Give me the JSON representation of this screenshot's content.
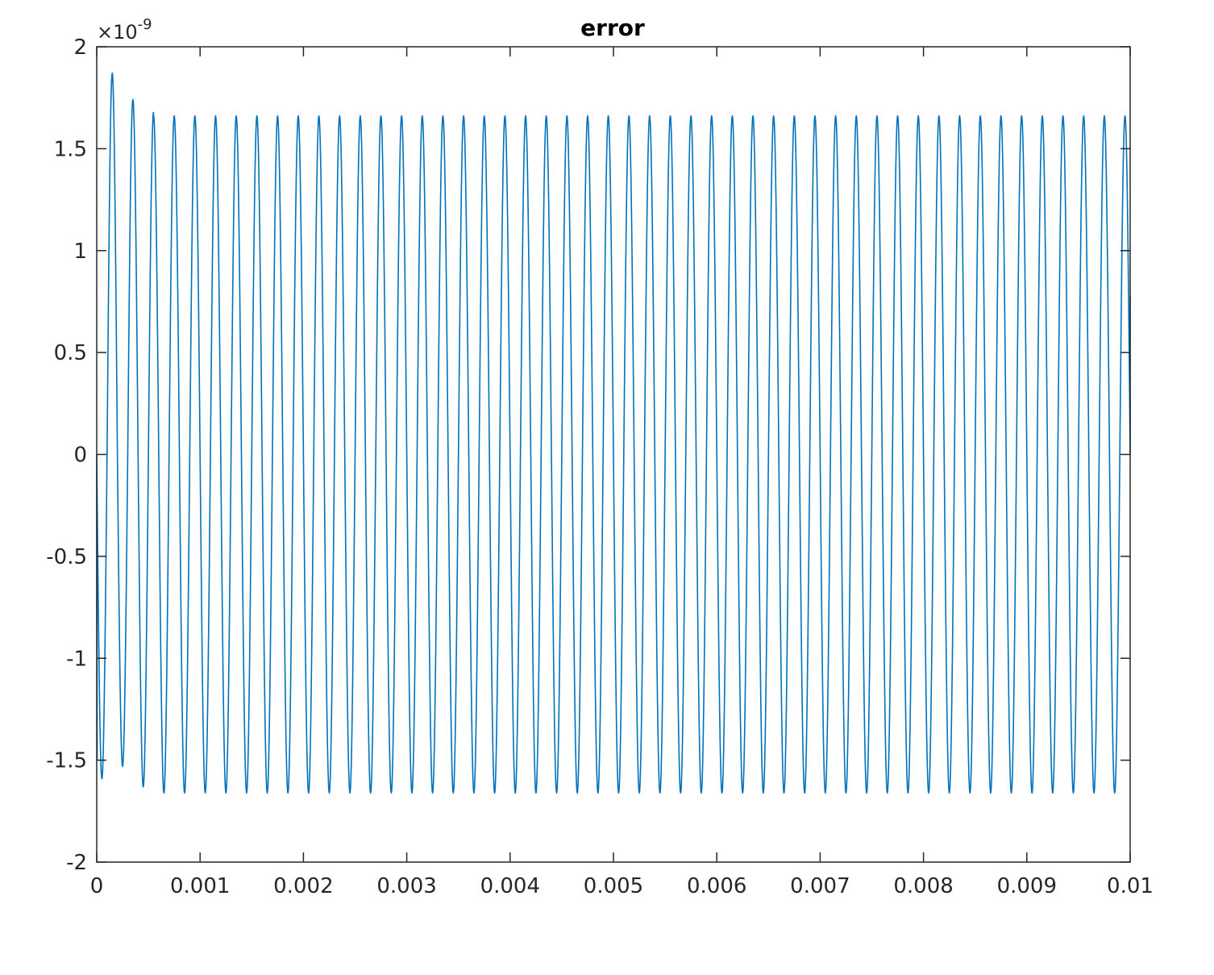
{
  "chart_data": {
    "type": "line",
    "title": "error",
    "xlabel": "",
    "ylabel": "",
    "xlim": [
      0,
      0.01
    ],
    "ylim": [
      -2e-09,
      2e-09
    ],
    "y_exponent_label": "×10",
    "y_exponent_power": "-9",
    "x_ticks": [
      {
        "value": 0,
        "label": "0"
      },
      {
        "value": 0.001,
        "label": "0.001"
      },
      {
        "value": 0.002,
        "label": "0.002"
      },
      {
        "value": 0.003,
        "label": "0.003"
      },
      {
        "value": 0.004,
        "label": "0.004"
      },
      {
        "value": 0.005,
        "label": "0.005"
      },
      {
        "value": 0.006,
        "label": "0.006"
      },
      {
        "value": 0.007,
        "label": "0.007"
      },
      {
        "value": 0.008,
        "label": "0.008"
      },
      {
        "value": 0.009,
        "label": "0.009"
      },
      {
        "value": 0.01,
        "label": "0.01"
      }
    ],
    "y_ticks": [
      {
        "value": 2e-09,
        "label": "2"
      },
      {
        "value": 1.5e-09,
        "label": "1.5"
      },
      {
        "value": 1e-09,
        "label": "1"
      },
      {
        "value": 5e-10,
        "label": "0.5"
      },
      {
        "value": 0,
        "label": "0"
      },
      {
        "value": -5e-10,
        "label": "-0.5"
      },
      {
        "value": -1e-09,
        "label": "-1"
      },
      {
        "value": -1.5e-09,
        "label": "-1.5"
      },
      {
        "value": -2e-09,
        "label": "-2"
      }
    ],
    "grid": false,
    "series": [
      {
        "color": "#0072BD",
        "signal": {
          "period": 0.0002,
          "steady_amplitude": 1.66e-09,
          "sample_step": 1e-06,
          "transient_peaks": [
            {
              "x": 5e-05,
              "y": -1.59e-09
            },
            {
              "x": 0.00015,
              "y": 1.87e-09
            },
            {
              "x": 0.00025,
              "y": -1.53e-09
            },
            {
              "x": 0.00035,
              "y": 1.74e-09
            },
            {
              "x": 0.00045,
              "y": -1.63e-09
            },
            {
              "x": 0.00055,
              "y": 1.68e-09
            }
          ],
          "end_value": 7.8e-10
        }
      }
    ]
  }
}
